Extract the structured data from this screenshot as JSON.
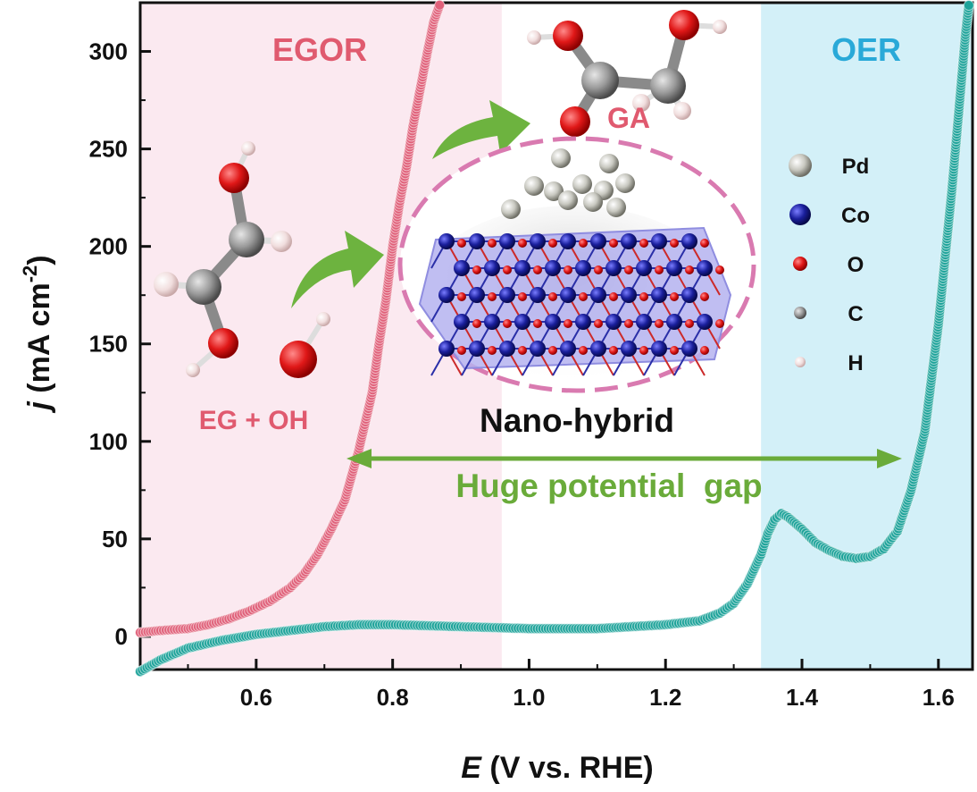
{
  "chart_data": {
    "type": "line",
    "xlabel_italic": "E",
    "xlabel_rest": " (V vs. RHE)",
    "ylabel_italic": "j",
    "ylabel_rest": " (mA cm",
    "ylabel_sup": "-2",
    "ylabel_close": ")",
    "xlim": [
      0.43,
      1.65
    ],
    "ylim": [
      -17,
      325
    ],
    "x_ticks": [
      {
        "value": 0.6,
        "label": "0.6"
      },
      {
        "value": 0.8,
        "label": "0.8"
      },
      {
        "value": 1.0,
        "label": "1.0"
      },
      {
        "value": 1.2,
        "label": "1.2"
      },
      {
        "value": 1.4,
        "label": "1.4"
      },
      {
        "value": 1.6,
        "label": "1.6"
      }
    ],
    "y_ticks": [
      {
        "value": 0,
        "label": "0"
      },
      {
        "value": 50,
        "label": "50"
      },
      {
        "value": 100,
        "label": "100"
      },
      {
        "value": 150,
        "label": "150"
      },
      {
        "value": 200,
        "label": "200"
      },
      {
        "value": 250,
        "label": "250"
      },
      {
        "value": 300,
        "label": "300"
      }
    ],
    "regions": [
      {
        "label": "EGOR",
        "x_range": [
          0.43,
          0.96
        ],
        "fill": "#fbe9f0",
        "label_color": "#e05a6f"
      },
      {
        "label": "OER",
        "x_range": [
          1.34,
          1.65
        ],
        "fill": "#d3f0f8",
        "label_color": "#29a9d8"
      }
    ],
    "series": [
      {
        "color": "#e0617a",
        "points": [
          [
            0.43,
            2
          ],
          [
            0.46,
            3
          ],
          [
            0.5,
            4
          ],
          [
            0.53,
            6
          ],
          [
            0.56,
            9
          ],
          [
            0.59,
            13
          ],
          [
            0.62,
            18
          ],
          [
            0.65,
            25
          ],
          [
            0.67,
            32
          ],
          [
            0.69,
            42
          ],
          [
            0.71,
            55
          ],
          [
            0.73,
            70
          ],
          [
            0.75,
            95
          ],
          [
            0.76,
            110
          ],
          [
            0.77,
            125
          ],
          [
            0.78,
            150
          ],
          [
            0.79,
            172
          ],
          [
            0.8,
            200
          ],
          [
            0.81,
            222
          ],
          [
            0.82,
            240
          ],
          [
            0.83,
            262
          ],
          [
            0.84,
            280
          ],
          [
            0.85,
            298
          ],
          [
            0.86,
            315
          ],
          [
            0.87,
            325
          ]
        ]
      },
      {
        "color": "#1ea39a",
        "points": [
          [
            0.43,
            -18
          ],
          [
            0.46,
            -12
          ],
          [
            0.5,
            -6
          ],
          [
            0.55,
            -2
          ],
          [
            0.6,
            1
          ],
          [
            0.65,
            3
          ],
          [
            0.7,
            5
          ],
          [
            0.75,
            6
          ],
          [
            0.8,
            6
          ],
          [
            0.9,
            5
          ],
          [
            1.0,
            4
          ],
          [
            1.1,
            4
          ],
          [
            1.15,
            5
          ],
          [
            1.2,
            6
          ],
          [
            1.25,
            8
          ],
          [
            1.28,
            12
          ],
          [
            1.3,
            17
          ],
          [
            1.32,
            27
          ],
          [
            1.34,
            42
          ],
          [
            1.35,
            53
          ],
          [
            1.36,
            60
          ],
          [
            1.37,
            63
          ],
          [
            1.38,
            61
          ],
          [
            1.4,
            55
          ],
          [
            1.42,
            48
          ],
          [
            1.44,
            44
          ],
          [
            1.46,
            41
          ],
          [
            1.48,
            40
          ],
          [
            1.5,
            41
          ],
          [
            1.52,
            45
          ],
          [
            1.54,
            54
          ],
          [
            1.56,
            75
          ],
          [
            1.58,
            105
          ],
          [
            1.6,
            160
          ],
          [
            1.62,
            230
          ],
          [
            1.63,
            270
          ],
          [
            1.64,
            310
          ],
          [
            1.645,
            325
          ]
        ]
      }
    ],
    "annotations": {
      "egor": "EGOR",
      "oer": "OER",
      "eg_oh": "EG + OH",
      "ga": "GA",
      "nano_hybrid": "Nano-hybrid",
      "gap": "Huge potential  gap"
    },
    "legend": {
      "placement": "right",
      "entries": [
        {
          "label": "Pd",
          "color": "#bdbcb4"
        },
        {
          "label": "Co",
          "color": "#1c1f8f"
        },
        {
          "label": "O",
          "color": "#d61c1c"
        },
        {
          "label": "C",
          "color": "#757575"
        },
        {
          "label": "H",
          "color": "#f4dcdc"
        }
      ]
    },
    "colors": {
      "arrow_green": "#6db33f",
      "gap_text": "#6aab3a",
      "ga_text": "#e05a6f",
      "eg_text": "#e05a6f",
      "ellipse_dash": "#d97ab0"
    }
  }
}
